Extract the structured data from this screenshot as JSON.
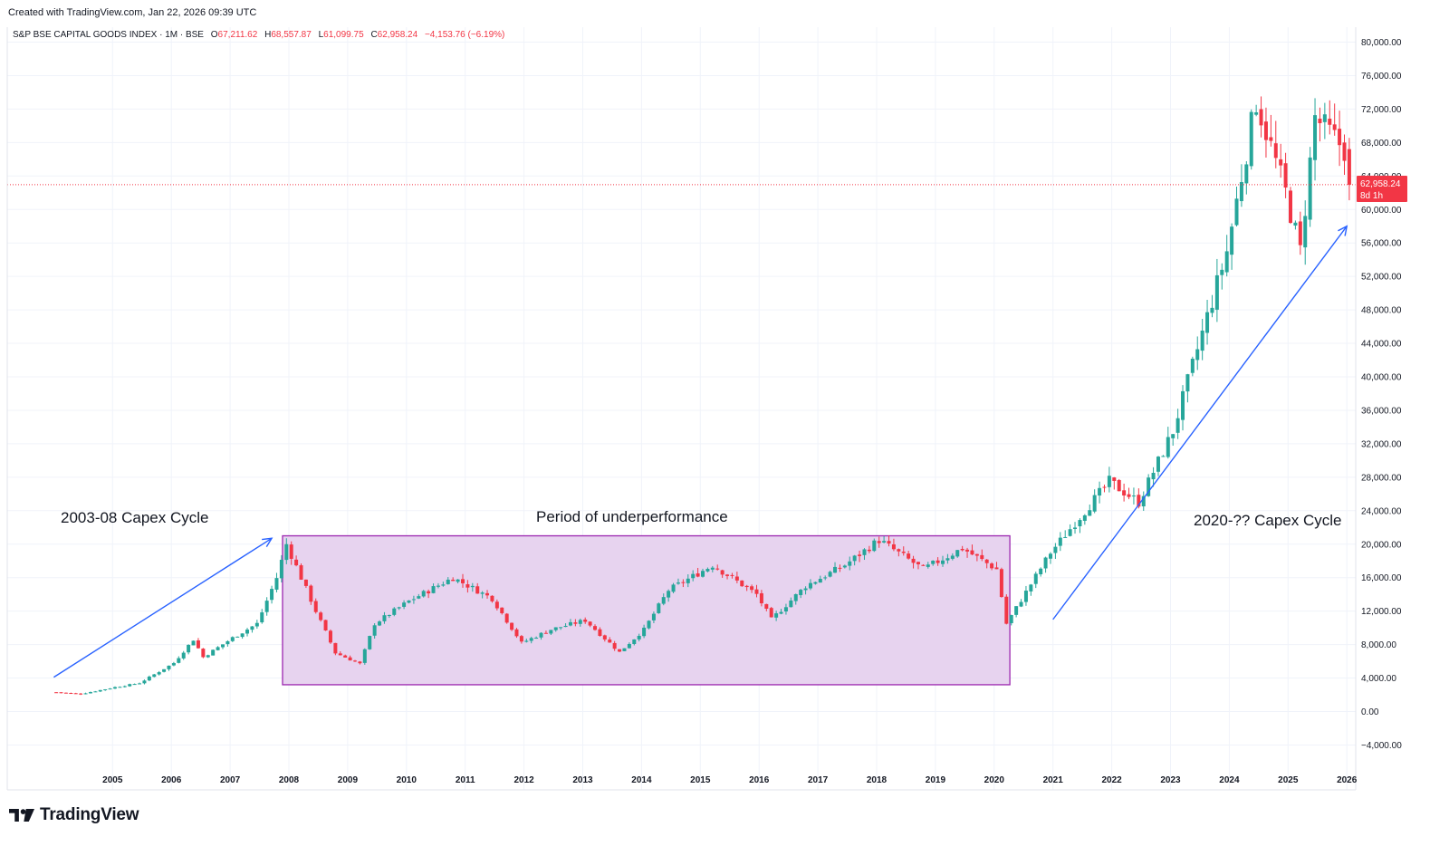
{
  "header": {
    "created_text": "Created with TradingView.com, Jan 22, 2026 09:39 UTC"
  },
  "legend": {
    "symbol": "S&P BSE CAPITAL GOODS INDEX · 1M · BSE",
    "o_label": "O",
    "o_value": "67,211.62",
    "h_label": "H",
    "h_value": "68,557.87",
    "l_label": "L",
    "l_value": "61,099.75",
    "c_label": "C",
    "c_value": "62,958.24",
    "change": "−4,153.76 (−6.19%)"
  },
  "price_label": {
    "price": "62,958.24",
    "countdown": "8d 1h"
  },
  "annotations": {
    "left": "2003-08 Capex Cycle",
    "middle": "Period of underperformance",
    "right": "2020-?? Capex Cycle"
  },
  "brand": {
    "name": "TradingView"
  },
  "colors": {
    "up": "#26a69a",
    "down": "#f23645",
    "arrow": "#2962ff",
    "box_fill": "#e7d3ef",
    "box_stroke": "#9c27b0",
    "grid": "#f0f3fa",
    "price_line": "#f23645"
  },
  "chart_data": {
    "type": "candlestick",
    "interval": "1M",
    "ylim": [
      -6000,
      82000
    ],
    "y_ticks": [
      "80,000.00",
      "76,000.00",
      "72,000.00",
      "68,000.00",
      "64,000.00",
      "60,000.00",
      "56,000.00",
      "52,000.00",
      "48,000.00",
      "44,000.00",
      "40,000.00",
      "36,000.00",
      "32,000.00",
      "28,000.00",
      "24,000.00",
      "20,000.00",
      "16,000.00",
      "12,000.00",
      "8,000.00",
      "4,000.00",
      "0.00",
      "−4,000.00"
    ],
    "x_ticks": [
      "2005",
      "2006",
      "2007",
      "2008",
      "2009",
      "2010",
      "2011",
      "2012",
      "2013",
      "2014",
      "2015",
      "2016",
      "2017",
      "2018",
      "2019",
      "2020",
      "2021",
      "2022",
      "2023",
      "2024",
      "2025",
      "2026"
    ],
    "close_series_approx": [
      {
        "date": "2004-01",
        "close": 2300
      },
      {
        "date": "2004-06",
        "close": 2100
      },
      {
        "date": "2005-01",
        "close": 2900
      },
      {
        "date": "2005-06",
        "close": 3400
      },
      {
        "date": "2006-01",
        "close": 5800
      },
      {
        "date": "2006-05",
        "close": 8600
      },
      {
        "date": "2006-07",
        "close": 6500
      },
      {
        "date": "2007-01",
        "close": 8800
      },
      {
        "date": "2007-06",
        "close": 10500
      },
      {
        "date": "2007-10",
        "close": 16000
      },
      {
        "date": "2007-12",
        "close": 20000
      },
      {
        "date": "2008-06",
        "close": 12000
      },
      {
        "date": "2008-10",
        "close": 7000
      },
      {
        "date": "2009-03",
        "close": 5700
      },
      {
        "date": "2009-06",
        "close": 10500
      },
      {
        "date": "2010-01",
        "close": 13200
      },
      {
        "date": "2010-10",
        "close": 16000
      },
      {
        "date": "2011-06",
        "close": 13500
      },
      {
        "date": "2011-12",
        "close": 8200
      },
      {
        "date": "2012-06",
        "close": 9800
      },
      {
        "date": "2013-01",
        "close": 10900
      },
      {
        "date": "2013-08",
        "close": 7100
      },
      {
        "date": "2014-01",
        "close": 9800
      },
      {
        "date": "2014-06",
        "close": 14500
      },
      {
        "date": "2015-03",
        "close": 17500
      },
      {
        "date": "2015-12",
        "close": 14000
      },
      {
        "date": "2016-03",
        "close": 11000
      },
      {
        "date": "2016-10",
        "close": 15000
      },
      {
        "date": "2017-06",
        "close": 17500
      },
      {
        "date": "2018-01",
        "close": 20500
      },
      {
        "date": "2018-10",
        "close": 17000
      },
      {
        "date": "2019-06",
        "close": 19500
      },
      {
        "date": "2020-01",
        "close": 17000
      },
      {
        "date": "2020-03",
        "close": 10500
      },
      {
        "date": "2020-12",
        "close": 19000
      },
      {
        "date": "2021-12",
        "close": 27500
      },
      {
        "date": "2022-06",
        "close": 25000
      },
      {
        "date": "2023-01",
        "close": 33500
      },
      {
        "date": "2023-12",
        "close": 55000
      },
      {
        "date": "2024-06",
        "close": 73000
      },
      {
        "date": "2024-12",
        "close": 62000
      },
      {
        "date": "2025-03",
        "close": 55000
      },
      {
        "date": "2025-06",
        "close": 71000
      },
      {
        "date": "2025-12",
        "close": 67211.62
      },
      {
        "date": "2026-01",
        "close": 62958.24
      }
    ],
    "last_candle": {
      "open": 67211.62,
      "high": 68557.87,
      "low": 61099.75,
      "close": 62958.24
    }
  }
}
